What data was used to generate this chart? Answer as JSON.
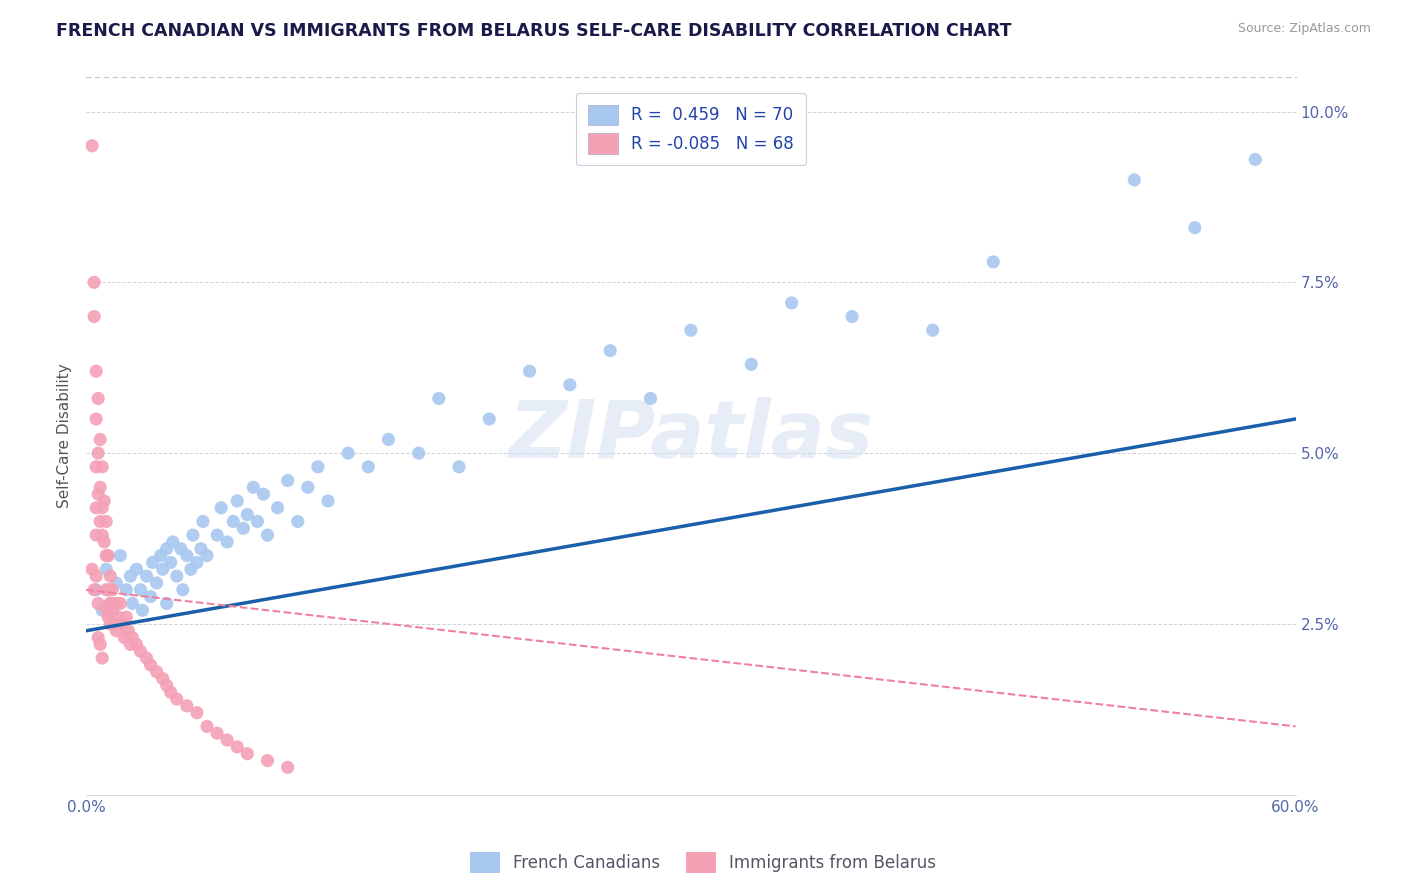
{
  "title": "FRENCH CANADIAN VS IMMIGRANTS FROM BELARUS SELF-CARE DISABILITY CORRELATION CHART",
  "source": "Source: ZipAtlas.com",
  "ylabel": "Self-Care Disability",
  "xlim": [
    0.0,
    0.6
  ],
  "ylim": [
    0.0,
    0.105
  ],
  "yticks": [
    0.025,
    0.05,
    0.075,
    0.1
  ],
  "ytick_labels": [
    "2.5%",
    "5.0%",
    "7.5%",
    "10.0%"
  ],
  "xticks": [
    0.0,
    0.6
  ],
  "xtick_labels": [
    "0.0%",
    "60.0%"
  ],
  "blue_color": "#a8c8f0",
  "pink_color": "#f4a0b5",
  "line_blue": "#1a5faa",
  "line_pink": "#f080a0",
  "watermark": "ZIPatlas",
  "blue_scatter_x": [
    0.005,
    0.008,
    0.01,
    0.012,
    0.015,
    0.017,
    0.018,
    0.02,
    0.022,
    0.023,
    0.025,
    0.027,
    0.028,
    0.03,
    0.032,
    0.033,
    0.035,
    0.037,
    0.038,
    0.04,
    0.04,
    0.042,
    0.043,
    0.045,
    0.047,
    0.048,
    0.05,
    0.052,
    0.053,
    0.055,
    0.057,
    0.058,
    0.06,
    0.065,
    0.067,
    0.07,
    0.073,
    0.075,
    0.078,
    0.08,
    0.083,
    0.085,
    0.088,
    0.09,
    0.095,
    0.1,
    0.105,
    0.11,
    0.115,
    0.12,
    0.13,
    0.14,
    0.15,
    0.165,
    0.175,
    0.185,
    0.2,
    0.22,
    0.24,
    0.26,
    0.28,
    0.3,
    0.33,
    0.35,
    0.38,
    0.42,
    0.45,
    0.52,
    0.55,
    0.58
  ],
  "blue_scatter_y": [
    0.03,
    0.027,
    0.033,
    0.028,
    0.031,
    0.035,
    0.025,
    0.03,
    0.032,
    0.028,
    0.033,
    0.03,
    0.027,
    0.032,
    0.029,
    0.034,
    0.031,
    0.035,
    0.033,
    0.028,
    0.036,
    0.034,
    0.037,
    0.032,
    0.036,
    0.03,
    0.035,
    0.033,
    0.038,
    0.034,
    0.036,
    0.04,
    0.035,
    0.038,
    0.042,
    0.037,
    0.04,
    0.043,
    0.039,
    0.041,
    0.045,
    0.04,
    0.044,
    0.038,
    0.042,
    0.046,
    0.04,
    0.045,
    0.048,
    0.043,
    0.05,
    0.048,
    0.052,
    0.05,
    0.058,
    0.048,
    0.055,
    0.062,
    0.06,
    0.065,
    0.058,
    0.068,
    0.063,
    0.072,
    0.07,
    0.068,
    0.078,
    0.09,
    0.083,
    0.093
  ],
  "pink_scatter_x": [
    0.003,
    0.004,
    0.004,
    0.005,
    0.005,
    0.005,
    0.005,
    0.006,
    0.006,
    0.006,
    0.007,
    0.007,
    0.007,
    0.008,
    0.008,
    0.008,
    0.009,
    0.009,
    0.01,
    0.01,
    0.01,
    0.01,
    0.011,
    0.011,
    0.011,
    0.012,
    0.012,
    0.012,
    0.013,
    0.013,
    0.014,
    0.014,
    0.015,
    0.015,
    0.016,
    0.017,
    0.018,
    0.019,
    0.02,
    0.021,
    0.022,
    0.023,
    0.025,
    0.027,
    0.03,
    0.032,
    0.035,
    0.038,
    0.04,
    0.042,
    0.045,
    0.05,
    0.055,
    0.06,
    0.065,
    0.07,
    0.075,
    0.08,
    0.09,
    0.1,
    0.003,
    0.004,
    0.005,
    0.005,
    0.006,
    0.006,
    0.007,
    0.008
  ],
  "pink_scatter_y": [
    0.095,
    0.075,
    0.07,
    0.062,
    0.055,
    0.048,
    0.042,
    0.058,
    0.05,
    0.044,
    0.052,
    0.045,
    0.04,
    0.048,
    0.042,
    0.038,
    0.043,
    0.037,
    0.04,
    0.035,
    0.03,
    0.027,
    0.035,
    0.03,
    0.026,
    0.032,
    0.028,
    0.025,
    0.03,
    0.027,
    0.028,
    0.025,
    0.028,
    0.024,
    0.026,
    0.028,
    0.025,
    0.023,
    0.026,
    0.024,
    0.022,
    0.023,
    0.022,
    0.021,
    0.02,
    0.019,
    0.018,
    0.017,
    0.016,
    0.015,
    0.014,
    0.013,
    0.012,
    0.01,
    0.009,
    0.008,
    0.007,
    0.006,
    0.005,
    0.004,
    0.033,
    0.03,
    0.038,
    0.032,
    0.028,
    0.023,
    0.022,
    0.02
  ],
  "blue_line_x0": 0.0,
  "blue_line_x1": 0.6,
  "blue_line_y0": 0.024,
  "blue_line_y1": 0.055,
  "pink_line_x0": 0.0,
  "pink_line_x1": 0.6,
  "pink_line_y0": 0.03,
  "pink_line_y1": 0.01
}
